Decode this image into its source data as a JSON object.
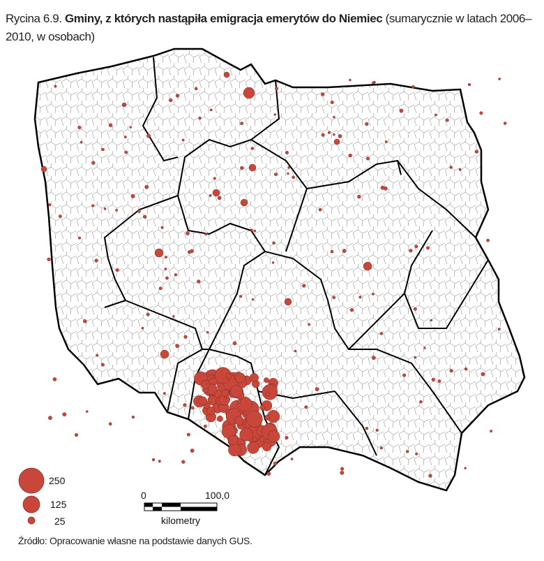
{
  "title": {
    "prefix": "Rycina 6.9.",
    "bold": "Gminy, z których nastąpiła emigracja emerytów do Niemiec",
    "suffix": "(sumarycznie w latach 2006–2010, w osobach)"
  },
  "legend": {
    "items": [
      {
        "value": "250"
      },
      {
        "value": "125"
      },
      {
        "value": "25"
      }
    ],
    "symbol_color": "#c9473a"
  },
  "scale_bar": {
    "start": "0",
    "end": "100,0",
    "unit": "kilometry"
  },
  "source": "Źródło: Opracowanie własne na podstawie danych GUS.",
  "colors": {
    "border": "#000000",
    "symbol": "#c9473a",
    "gmina_lines": "#555555"
  }
}
